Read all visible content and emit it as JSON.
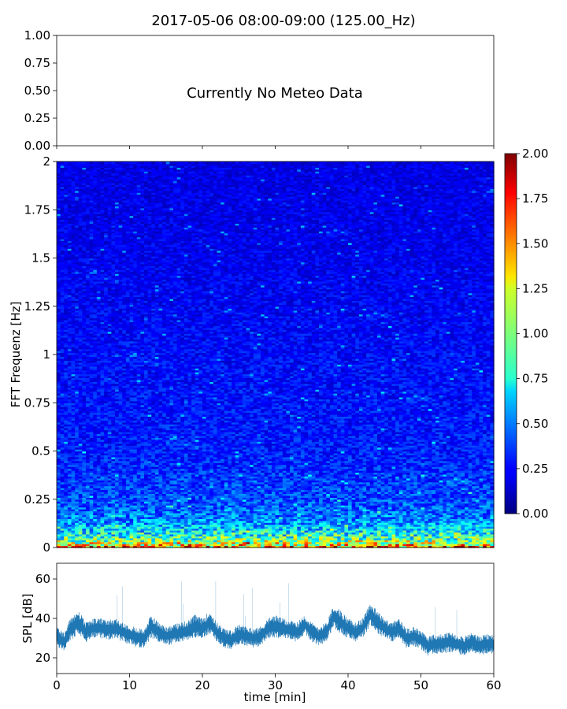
{
  "figure": {
    "title": "2017-05-06 08:00-09:00 (125.00_Hz)"
  },
  "chart_data": [
    {
      "id": "meteo",
      "type": "line",
      "title": "",
      "annotation": "Currently No Meteo Data",
      "xlim": [
        0,
        60
      ],
      "ylim": [
        0,
        1
      ],
      "yticks": [
        0,
        0.25,
        0.5,
        0.75,
        1.0
      ],
      "ytick_labels": [
        "0.00",
        "0.25",
        "0.50",
        "0.75",
        "1.00"
      ],
      "xlabel": "",
      "ylabel": "",
      "series": []
    },
    {
      "id": "spectrogram",
      "type": "heatmap",
      "xlim": [
        0,
        60
      ],
      "ylim": [
        0,
        2
      ],
      "ylabel": "FFT Frequenz [Hz]",
      "yticks": [
        0,
        0.25,
        0.5,
        0.75,
        1,
        1.25,
        1.5,
        1.75,
        2
      ],
      "ytick_labels": [
        "0",
        "0.25",
        "0.5",
        "0.75",
        "1",
        "1.25",
        "1.5",
        "1.75",
        "2"
      ],
      "colormap": "jet",
      "colorbar": {
        "range": [
          0,
          2
        ],
        "ticks": [
          0,
          0.25,
          0.5,
          0.75,
          1.0,
          1.25,
          1.5,
          1.75,
          2.0
        ],
        "tick_labels": [
          "0.00",
          "0.25",
          "0.50",
          "0.75",
          "1.00",
          "1.25",
          "1.50",
          "1.75",
          "2.00"
        ]
      },
      "grid": {
        "time_bins": 120,
        "freq_bins": 200
      },
      "intensity_profile": {
        "freq": [
          0,
          0.02,
          0.05,
          0.1,
          0.15,
          0.25,
          0.5,
          1.0,
          1.5,
          2.0
        ],
        "mean": [
          1.6,
          1.2,
          0.9,
          0.65,
          0.5,
          0.4,
          0.3,
          0.26,
          0.22,
          0.2
        ]
      }
    },
    {
      "id": "spl",
      "type": "line",
      "xlim": [
        0,
        60
      ],
      "ylim": [
        12,
        68
      ],
      "xlabel": "time [min]",
      "ylabel": "SPL [dB]",
      "xticks": [
        0,
        10,
        20,
        30,
        40,
        50,
        60
      ],
      "xtick_labels": [
        "0",
        "10",
        "20",
        "30",
        "40",
        "50",
        "60"
      ],
      "yticks": [
        20,
        40,
        60
      ],
      "ytick_labels": [
        "20",
        "40",
        "60"
      ],
      "series": [
        {
          "color": "#1f77b4",
          "x": [
            0,
            1,
            2,
            3,
            4,
            5,
            6,
            7,
            8,
            9,
            10,
            11,
            12,
            13,
            14,
            15,
            16,
            17,
            18,
            19,
            20,
            21,
            22,
            23,
            24,
            25,
            26,
            27,
            28,
            29,
            30,
            31,
            32,
            33,
            34,
            35,
            36,
            37,
            38,
            39,
            40,
            41,
            42,
            43,
            44,
            45,
            46,
            47,
            48,
            49,
            50,
            51,
            52,
            53,
            54,
            55,
            56,
            57,
            58,
            59,
            60
          ],
          "y": [
            31,
            28,
            35,
            38,
            33,
            35,
            35,
            34,
            35,
            33,
            32,
            30,
            30,
            36,
            33,
            31,
            32,
            33,
            34,
            36,
            35,
            38,
            33,
            30,
            29,
            32,
            31,
            30,
            31,
            35,
            36,
            35,
            34,
            33,
            37,
            33,
            31,
            33,
            41,
            38,
            35,
            33,
            35,
            42,
            38,
            35,
            33,
            35,
            30,
            31,
            29,
            26,
            27,
            27,
            28,
            27,
            26,
            28,
            26,
            27,
            27
          ],
          "band": [
            5,
            5,
            6,
            6,
            5,
            5,
            5,
            5,
            5,
            5,
            5,
            5,
            5,
            6,
            5,
            5,
            5,
            5,
            5,
            6,
            5,
            6,
            5,
            5,
            5,
            5,
            5,
            5,
            5,
            5,
            6,
            5,
            5,
            5,
            5,
            5,
            5,
            5,
            6,
            6,
            5,
            5,
            5,
            6,
            6,
            5,
            5,
            5,
            5,
            5,
            5,
            5,
            5,
            5,
            5,
            5,
            5,
            5,
            5,
            5,
            5
          ]
        }
      ]
    }
  ]
}
